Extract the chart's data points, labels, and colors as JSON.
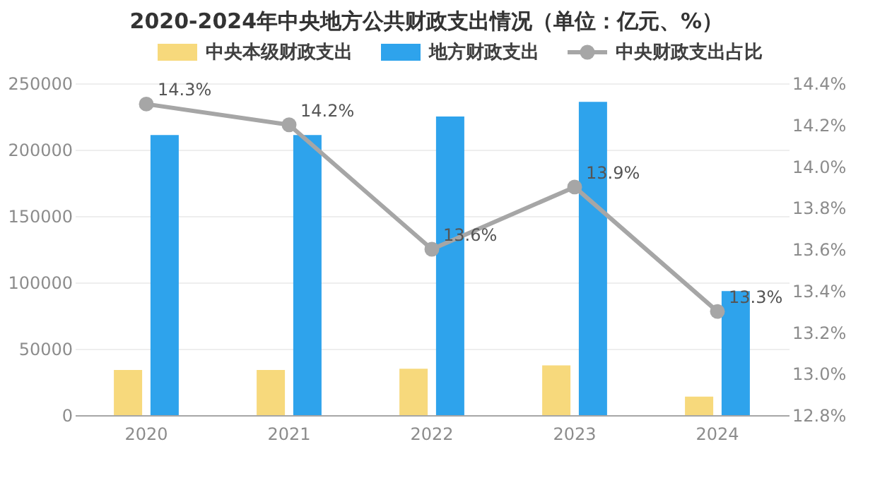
{
  "chart_data": {
    "type": "bar",
    "title": "2020-2024年中央地方公共财政支出情况（单位：亿元、%）",
    "categories": [
      "2020",
      "2021",
      "2022",
      "2023",
      "2024"
    ],
    "series": [
      {
        "name": "中央本级财政支出",
        "color": "#f7d97c",
        "values": [
          34000,
          34000,
          35000,
          37500,
          14000
        ]
      },
      {
        "name": "地方财政支出",
        "color": "#2ea3ec",
        "values": [
          211000,
          211000,
          225000,
          236000,
          93500
        ]
      },
      {
        "name": "中央财政支出占比",
        "type": "line",
        "axis": "y2",
        "color": "#a6a6a6",
        "values": [
          14.3,
          14.2,
          13.6,
          13.9,
          13.3
        ],
        "value_labels": [
          "14.3%",
          "14.2%",
          "13.6%",
          "13.9%",
          "13.3%"
        ]
      }
    ],
    "ylim": [
      0,
      250000
    ],
    "yticks": [
      0,
      50000,
      100000,
      150000,
      200000,
      250000
    ],
    "y2lim": [
      12.8,
      14.4
    ],
    "y2ticks": [
      {
        "value": 12.8,
        "label": "12.8%"
      },
      {
        "value": 13.0,
        "label": "13.0%"
      },
      {
        "value": 13.2,
        "label": "13.2%"
      },
      {
        "value": 13.4,
        "label": "13.4%"
      },
      {
        "value": 13.6,
        "label": "13.6%"
      },
      {
        "value": 13.8,
        "label": "13.8%"
      },
      {
        "value": 14.0,
        "label": "14.0%"
      },
      {
        "value": 14.2,
        "label": "14.2%"
      },
      {
        "value": 14.4,
        "label": "14.4%"
      }
    ],
    "grid": "y",
    "legend": "top",
    "marker": "circle",
    "line_style": "solid"
  }
}
